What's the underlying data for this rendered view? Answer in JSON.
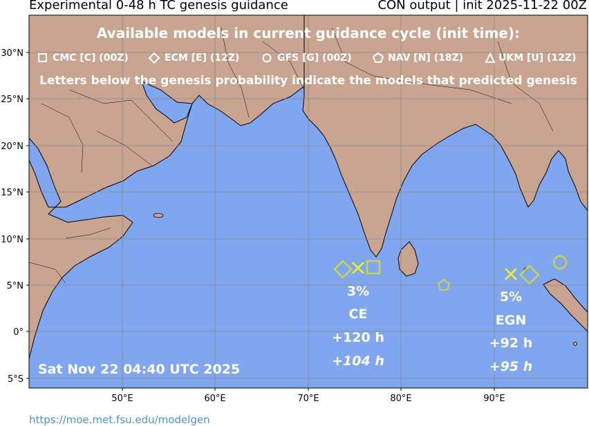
{
  "header": {
    "left_title": "Experimental 0-48 h TC genesis guidance",
    "right_title": "CON output | init 2025-11-22 00Z"
  },
  "banner": {
    "heading": "Available models in current guidance cycle (init time):",
    "note": "Letters below the genesis probability indicate the models that predicted genesis",
    "models": [
      {
        "symbol": "square",
        "label": "CMC [C] (00Z)"
      },
      {
        "symbol": "diamond",
        "label": "ECM [E] (12Z)"
      },
      {
        "symbol": "circle",
        "label": "GFS [G] (00Z)"
      },
      {
        "symbol": "pentagon",
        "label": "NAV [N] (18Z)"
      },
      {
        "symbol": "triangle",
        "label": "UKM [U] (12Z)"
      }
    ]
  },
  "axes": {
    "lat_labels": [
      "30°N",
      "25°N",
      "20°N",
      "15°N",
      "10°N",
      "5°N",
      "0°",
      "5°S"
    ],
    "lon_labels": [
      "50°E",
      "60°E",
      "70°E",
      "80°E",
      "90°E"
    ]
  },
  "genesis_areas": [
    {
      "probability": "3%",
      "models": "CE",
      "time_primary": "+120 h",
      "time_secondary": "+104 h"
    },
    {
      "probability": "5%",
      "models": "EGN",
      "time_primary": "+92 h",
      "time_secondary": "+95 h"
    }
  ],
  "timestamp": "Sat Nov 22 04:40 UTC 2025",
  "footer": {
    "url": "https://moe.met.fsu.edu/modelgen"
  },
  "colors": {
    "ocean": "#7fa6ef",
    "land": "#c9a490",
    "marker_model": "#c8d44e",
    "marker_genesis": "#f4f41e"
  }
}
